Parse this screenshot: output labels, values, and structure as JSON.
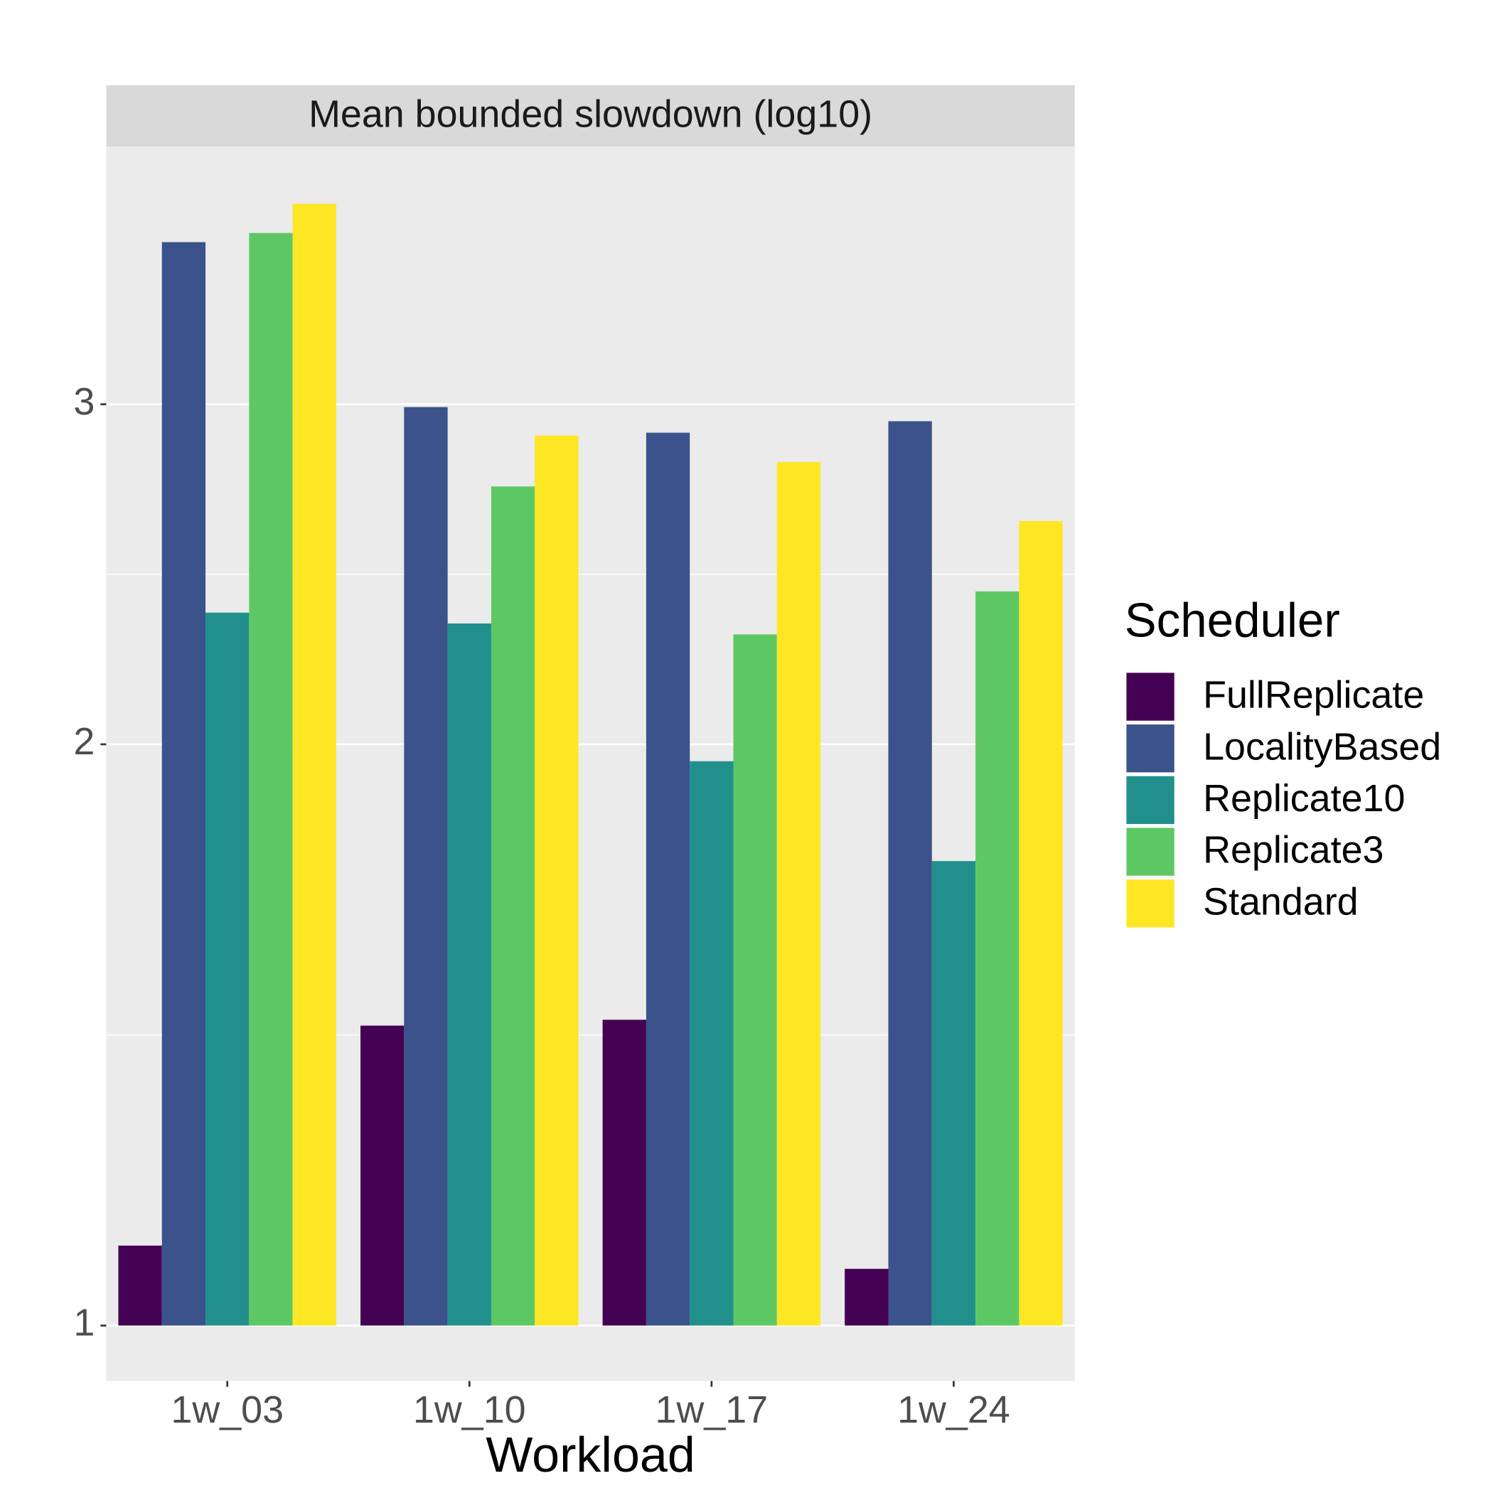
{
  "chart_data": {
    "type": "bar",
    "title": "Mean bounded slowdown (log10)",
    "x_label": "Workload",
    "legend_title": "Scheduler",
    "log_scale": true,
    "grid": true,
    "categories": [
      "1w_03",
      "1w_10",
      "1w_17",
      "1w_24"
    ],
    "series": [
      {
        "name": "FullReplicate",
        "color": "#440154",
        "values": [
          1.1,
          1.43,
          1.44,
          1.07
        ]
      },
      {
        "name": "LocalityBased",
        "color": "#3b528b",
        "values": [
          3.64,
          2.99,
          2.9,
          2.94
        ]
      },
      {
        "name": "Replicate10",
        "color": "#21908c",
        "values": [
          2.34,
          2.31,
          1.96,
          1.74
        ]
      },
      {
        "name": "Replicate3",
        "color": "#5dc863",
        "values": [
          3.68,
          2.72,
          2.28,
          2.4
        ]
      },
      {
        "name": "Standard",
        "color": "#fde725",
        "values": [
          3.81,
          2.89,
          2.8,
          2.61
        ]
      }
    ],
    "ylim": [
      0.936,
      4.08
    ],
    "yticks": [
      1,
      2,
      3
    ]
  }
}
